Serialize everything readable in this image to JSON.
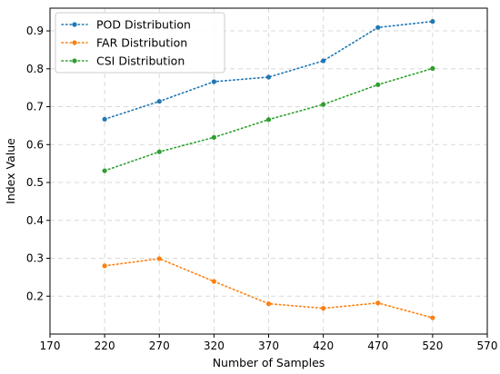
{
  "chart_data": {
    "type": "line",
    "title": "",
    "xlabel": "Number of Samples",
    "ylabel": "Index Value",
    "xlim": [
      170,
      570
    ],
    "ylim": [
      0.1,
      0.96
    ],
    "xticks": [
      170,
      220,
      270,
      320,
      370,
      420,
      470,
      520,
      570
    ],
    "yticks": [
      0.2,
      0.3,
      0.4,
      0.5,
      0.6,
      0.7,
      0.8,
      0.9
    ],
    "x": [
      220,
      270,
      320,
      370,
      420,
      470,
      520
    ],
    "grid": true,
    "legend_position": "top-left",
    "series": [
      {
        "name": "POD Distribution",
        "color": "#1f77b4",
        "values": [
          0.667,
          0.714,
          0.766,
          0.778,
          0.821,
          0.909,
          0.925
        ]
      },
      {
        "name": "FAR Distribution",
        "color": "#ff7f0e",
        "values": [
          0.28,
          0.299,
          0.239,
          0.18,
          0.168,
          0.182,
          0.143
        ]
      },
      {
        "name": "CSI Distribution",
        "color": "#2ca02c",
        "values": [
          0.531,
          0.581,
          0.619,
          0.666,
          0.706,
          0.758,
          0.801
        ]
      }
    ]
  }
}
